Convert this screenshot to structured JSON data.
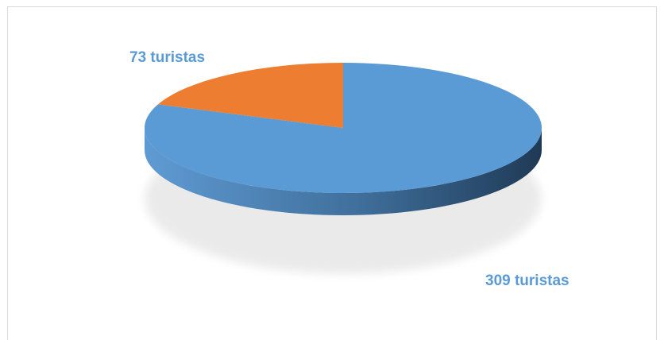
{
  "chart_data": {
    "type": "pie",
    "style": "3d",
    "title": "",
    "slices": [
      {
        "label": "309  turistas",
        "value": 309,
        "color": "#5B9BD5"
      },
      {
        "label": "73 turistas",
        "value": 73,
        "color": "#ED7D31"
      }
    ],
    "legend": "none"
  }
}
